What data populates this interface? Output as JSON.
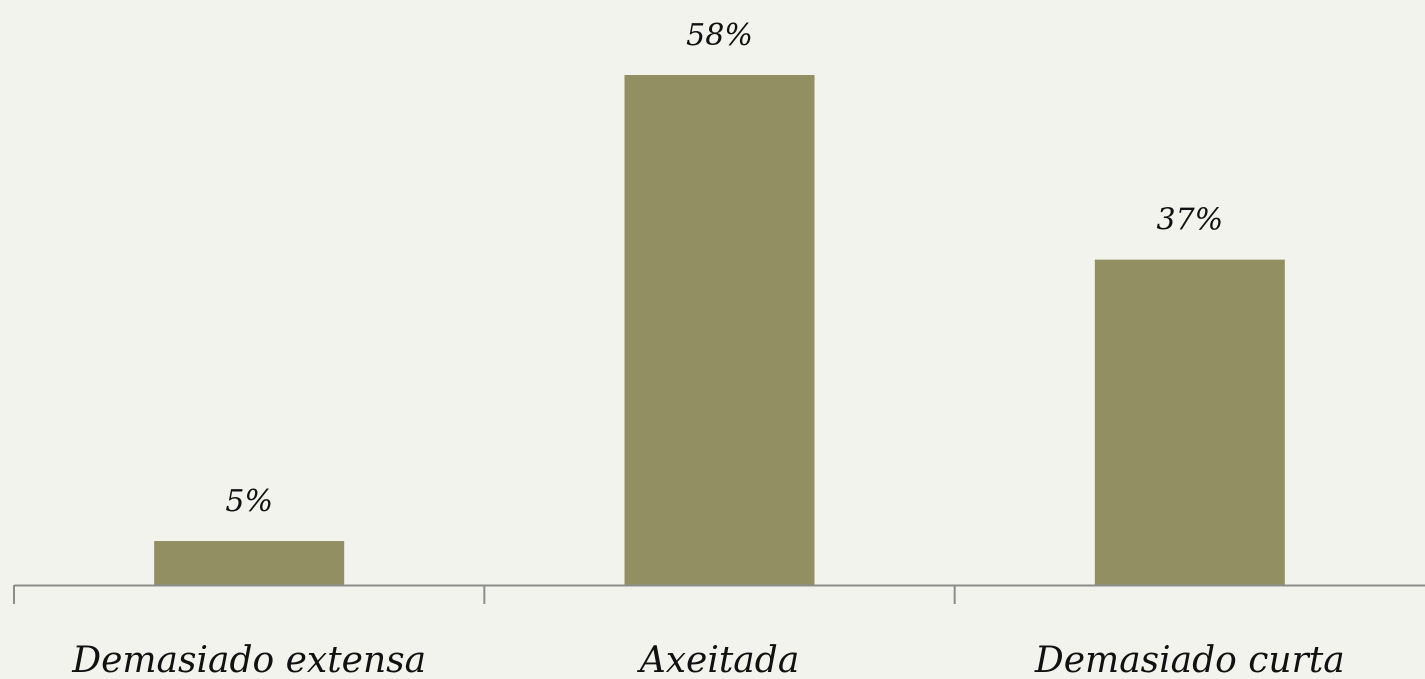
{
  "chart_data": {
    "type": "bar",
    "categories": [
      "Demasiado extensa",
      "Axeitada",
      "Demasiado curta"
    ],
    "values": [
      5,
      58,
      37
    ],
    "data_labels": [
      "5%",
      "58%",
      "37%"
    ],
    "unit": "%",
    "title": "",
    "xlabel": "",
    "ylabel": "",
    "ylim": [
      0,
      58
    ],
    "grid": false,
    "legend": "none",
    "bar_color": "#928f63",
    "axis_color": "#8c8c8c",
    "background": "#f3f3ee"
  }
}
